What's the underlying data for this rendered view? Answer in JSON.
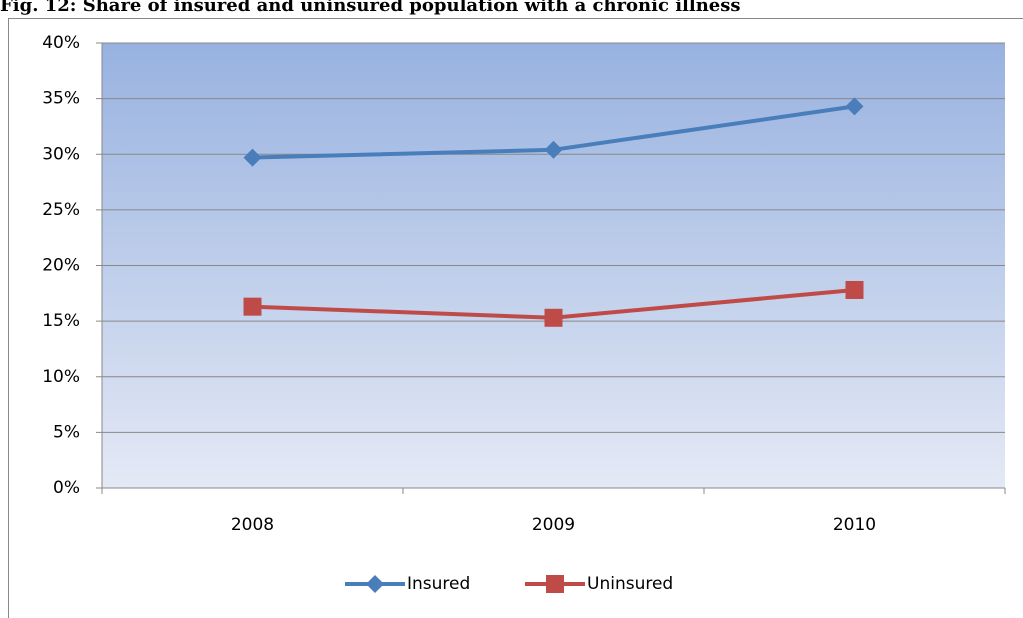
{
  "chart_data": {
    "type": "line",
    "title": "Fig. 12: Share of insured and uninsured population with a chronic illness",
    "categories": [
      "2008",
      "2009",
      "2010"
    ],
    "series": [
      {
        "name": "Insured",
        "color": "#4a7ebb",
        "marker": "diamond",
        "values": [
          29.7,
          30.4,
          34.3
        ]
      },
      {
        "name": "Uninsured",
        "color": "#be4b48",
        "marker": "square",
        "values": [
          16.3,
          15.3,
          17.8
        ]
      }
    ],
    "ylim": [
      0,
      40
    ],
    "yticks": [
      {
        "value": 0,
        "label": "0%"
      },
      {
        "value": 5,
        "label": "5%"
      },
      {
        "value": 10,
        "label": "10%"
      },
      {
        "value": 15,
        "label": "15%"
      },
      {
        "value": 20,
        "label": "20%"
      },
      {
        "value": 25,
        "label": "25%"
      },
      {
        "value": 30,
        "label": "30%"
      },
      {
        "value": 35,
        "label": "35%"
      },
      {
        "value": 40,
        "label": "40%"
      }
    ],
    "grid": true
  }
}
